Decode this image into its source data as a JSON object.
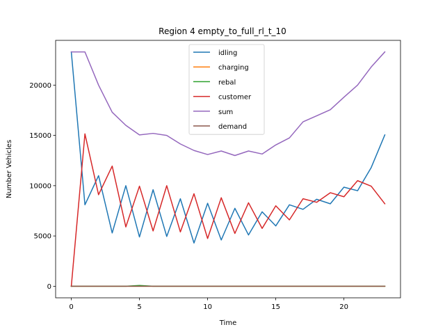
{
  "chart_data": {
    "type": "line",
    "title": "Region 4 empty_to_full_rl_t_10",
    "xlabel": "Time",
    "ylabel": "Number Vehicles",
    "xlim": [
      -1.15,
      24.15
    ],
    "ylim": [
      -1150,
      24450
    ],
    "xticks": [
      0,
      5,
      10,
      15,
      20
    ],
    "yticks": [
      0,
      5000,
      10000,
      15000,
      20000
    ],
    "grid": false,
    "legend_position": "top-center",
    "x": [
      0,
      1,
      2,
      3,
      4,
      5,
      6,
      7,
      8,
      9,
      10,
      11,
      12,
      13,
      14,
      15,
      16,
      17,
      18,
      19,
      20,
      21,
      22,
      23
    ],
    "series": [
      {
        "name": "idling",
        "color": "#1f77b4",
        "values": [
          23300,
          8100,
          11000,
          5300,
          10000,
          4900,
          9600,
          4950,
          8700,
          4300,
          8250,
          4600,
          7750,
          5100,
          7400,
          6000,
          8100,
          7650,
          8650,
          8200,
          9850,
          9500,
          11800,
          15050
        ]
      },
      {
        "name": "charging",
        "color": "#ff7f0e",
        "values": [
          0,
          0,
          0,
          0,
          0,
          0,
          0,
          0,
          0,
          0,
          0,
          0,
          0,
          0,
          0,
          0,
          0,
          0,
          0,
          0,
          0,
          0,
          0,
          0
        ]
      },
      {
        "name": "rebal",
        "color": "#2ca02c",
        "values": [
          0,
          0,
          0,
          0,
          0,
          80,
          0,
          0,
          0,
          0,
          0,
          0,
          0,
          0,
          0,
          0,
          0,
          0,
          0,
          0,
          0,
          0,
          0,
          0
        ]
      },
      {
        "name": "customer",
        "color": "#d62728",
        "values": [
          0,
          15150,
          9100,
          11950,
          5900,
          9950,
          5500,
          10000,
          5400,
          9200,
          4750,
          8800,
          5250,
          8300,
          5750,
          8000,
          6600,
          8700,
          8350,
          9300,
          8900,
          10500,
          9950,
          8200
        ]
      },
      {
        "name": "sum",
        "color": "#9467bd",
        "values": [
          23300,
          23300,
          20000,
          17300,
          16000,
          15050,
          15200,
          15000,
          14150,
          13500,
          13100,
          13450,
          13000,
          13450,
          13150,
          14050,
          14750,
          16350,
          16950,
          17550,
          18800,
          20000,
          21800,
          23300
        ]
      },
      {
        "name": "demand",
        "color": "#8c564b",
        "values": [
          0,
          0,
          0,
          0,
          0,
          0,
          0,
          0,
          0,
          0,
          0,
          0,
          0,
          0,
          0,
          0,
          0,
          0,
          0,
          0,
          0,
          0,
          0,
          0
        ]
      }
    ]
  }
}
